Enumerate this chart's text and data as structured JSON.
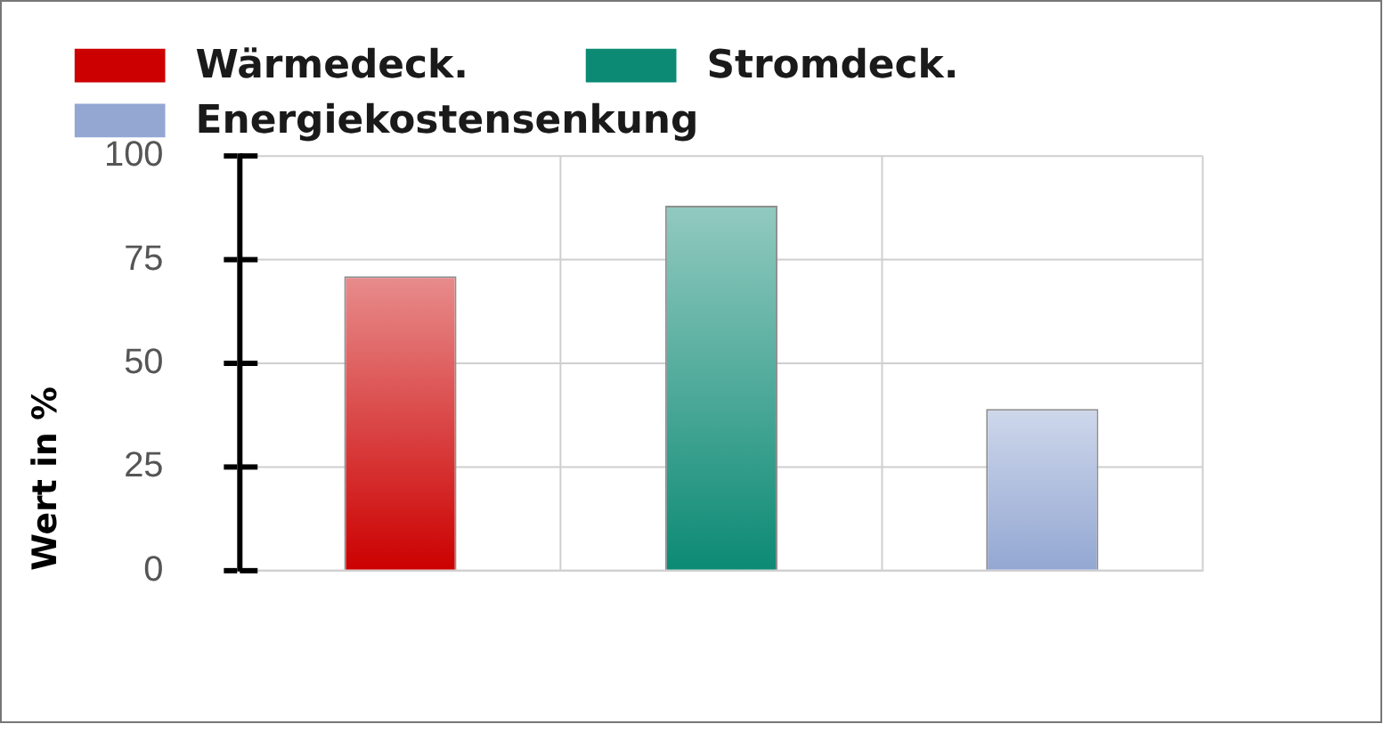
{
  "chart_data": {
    "type": "bar",
    "ylabel": "Wert in %",
    "categories": [
      null,
      null,
      null
    ],
    "series": [
      {
        "name": "Wärmedeck.",
        "color": "#cc0000",
        "values": [
          71,
          null,
          null
        ]
      },
      {
        "name": "Stromdeck.",
        "color": "#0c8a74",
        "values": [
          null,
          88,
          null
        ]
      },
      {
        "name": "Energiekostensenkung",
        "color": "#93a7d2",
        "values": [
          null,
          null,
          39
        ]
      }
    ],
    "ylim": [
      0,
      100
    ],
    "yticks": [
      0,
      25,
      50,
      75,
      100
    ],
    "grid": true,
    "legend": "top left",
    "tick_labels": "y"
  }
}
